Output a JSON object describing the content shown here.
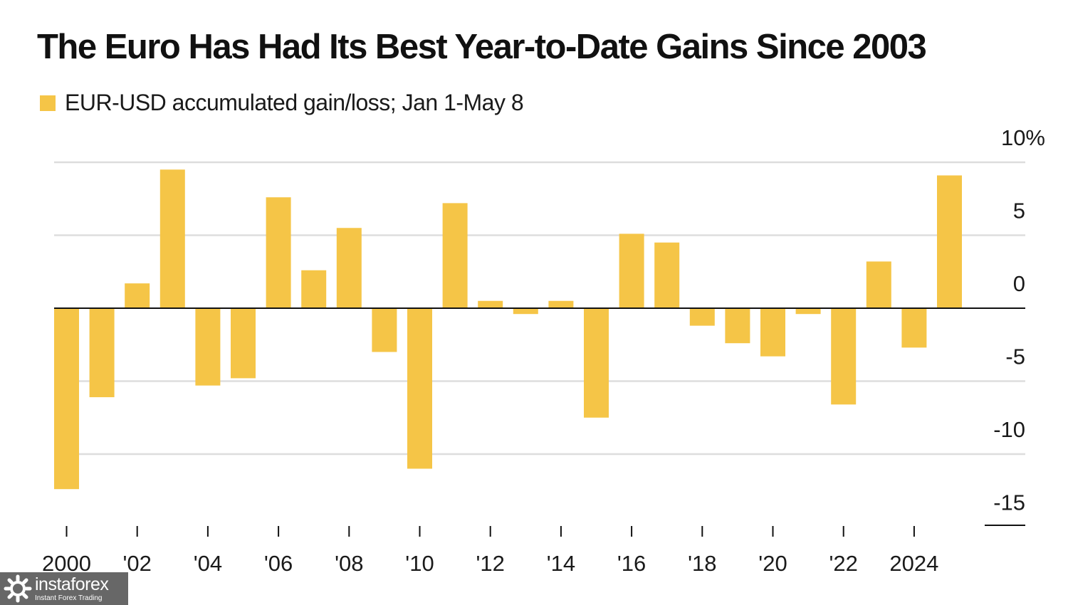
{
  "chart_data": {
    "type": "bar",
    "title": "The Euro Has Had Its Best Year-to-Date Gains Since 2003",
    "legend": "EUR-USD accumulated gain/loss; Jan 1-May 8",
    "x": [
      2000,
      2001,
      2002,
      2003,
      2004,
      2005,
      2006,
      2007,
      2008,
      2009,
      2010,
      2011,
      2012,
      2013,
      2014,
      2015,
      2016,
      2017,
      2018,
      2019,
      2020,
      2021,
      2022,
      2023,
      2024,
      2025
    ],
    "values": [
      -12.4,
      -6.1,
      1.7,
      9.5,
      -5.3,
      -4.8,
      7.6,
      2.6,
      5.5,
      -3.0,
      -11.0,
      7.2,
      0.5,
      -0.4,
      0.5,
      -7.5,
      5.1,
      4.5,
      -1.2,
      -2.4,
      -3.3,
      -0.4,
      -6.6,
      3.2,
      -2.7,
      9.1
    ],
    "xtick_labels": [
      "2000",
      "'02",
      "'04",
      "'06",
      "'08",
      "'10",
      "'12",
      "'14",
      "'16",
      "'18",
      "'20",
      "'22",
      "2024"
    ],
    "xtick_years": [
      2000,
      2002,
      2004,
      2006,
      2008,
      2010,
      2012,
      2014,
      2016,
      2018,
      2020,
      2022,
      2024
    ],
    "yticks": [
      10,
      5,
      0,
      -5,
      -10,
      -15
    ],
    "ytick_labels": [
      "10%",
      "5",
      "0",
      "-5",
      "-10",
      "-15"
    ],
    "ylim": [
      -15,
      10
    ],
    "y_axis_side": "right",
    "grid": true,
    "bar_color": "#F5C547",
    "grid_color": "#DDDDDD",
    "zero_line_color": "#111111"
  },
  "watermark": {
    "name": "instaforex",
    "tagline": "Instant Forex Trading"
  }
}
